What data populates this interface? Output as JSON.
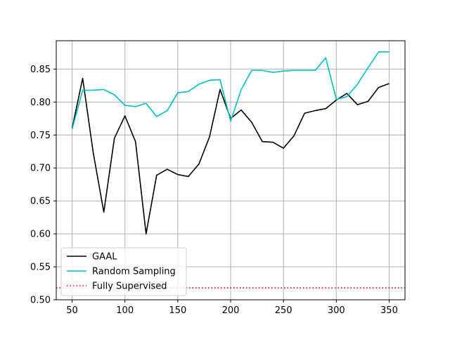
{
  "chart_data": {
    "type": "line",
    "title": "",
    "xlabel": "",
    "ylabel": "",
    "xlim": [
      35,
      365
    ],
    "ylim": [
      0.5,
      0.893
    ],
    "xticks": [
      50,
      100,
      150,
      200,
      250,
      300,
      350
    ],
    "xtick_labels": [
      "50",
      "100",
      "150",
      "200",
      "250",
      "300",
      "350"
    ],
    "yticks": [
      0.5,
      0.55,
      0.6,
      0.65,
      0.7,
      0.75,
      0.8,
      0.85
    ],
    "ytick_labels": [
      "0.50",
      "0.55",
      "0.60",
      "0.65",
      "0.70",
      "0.75",
      "0.80",
      "0.85"
    ],
    "grid": true,
    "legend_position": "lower-left",
    "x": [
      50,
      60,
      70,
      80,
      90,
      100,
      110,
      120,
      130,
      140,
      150,
      160,
      170,
      180,
      190,
      200,
      210,
      220,
      230,
      240,
      250,
      260,
      270,
      280,
      290,
      300,
      310,
      320,
      330,
      340,
      350
    ],
    "series": [
      {
        "name": "GAAL",
        "color": "#000000",
        "style": "solid",
        "values": [
          0.76,
          0.836,
          0.723,
          0.633,
          0.745,
          0.779,
          0.74,
          0.6,
          0.689,
          0.698,
          0.69,
          0.687,
          0.706,
          0.747,
          0.819,
          0.775,
          0.788,
          0.769,
          0.74,
          0.739,
          0.73,
          0.749,
          0.783,
          0.787,
          0.79,
          0.803,
          0.813,
          0.796,
          0.801,
          0.822,
          0.828
        ]
      },
      {
        "name": "Random Sampling",
        "color": "#00bfbf",
        "style": "solid",
        "values": [
          0.759,
          0.818,
          0.818,
          0.819,
          0.811,
          0.795,
          0.793,
          0.798,
          0.778,
          0.787,
          0.814,
          0.816,
          0.827,
          0.833,
          0.834,
          0.771,
          0.819,
          0.848,
          0.848,
          0.845,
          0.847,
          0.848,
          0.848,
          0.848,
          0.867,
          0.804,
          0.808,
          0.827,
          0.852,
          0.876,
          0.876
        ]
      }
    ],
    "reference_lines": [
      {
        "name": "Fully Supervised",
        "y": 0.518,
        "color": "#ff0000",
        "style": "dotted"
      }
    ]
  }
}
